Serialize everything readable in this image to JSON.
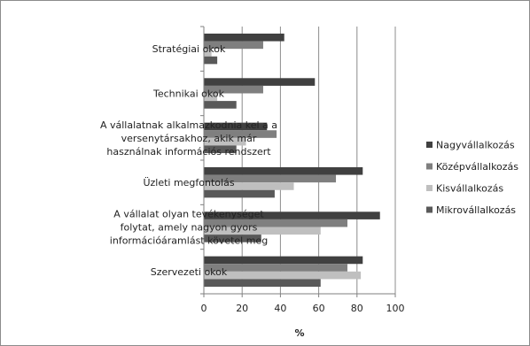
{
  "chart_data": {
    "type": "bar",
    "orientation": "horizontal",
    "categories": [
      [
        "Stratégiai okok"
      ],
      [
        "Technikai okok"
      ],
      [
        "A vállalatnak alkalmazkodnia kel a a",
        "versenytársakhoz, akik már",
        "használnak információs rendszert"
      ],
      [
        "Üzleti megfontolás"
      ],
      [
        "A vállalat olyan tevékenységet",
        "folytat, amely nagyon gyors",
        "információáramlást követel meg"
      ],
      [
        "Szervezeti okok"
      ]
    ],
    "series": [
      {
        "name": "Nagyvállalkozás",
        "color": "#404040",
        "values": [
          42,
          58,
          33,
          83,
          92,
          83
        ]
      },
      {
        "name": "Középvállalkozás",
        "color": "#7f7f7f",
        "values": [
          31,
          31,
          38,
          69,
          75,
          75
        ]
      },
      {
        "name": "Kisvállalkozás",
        "color": "#bfbfbf",
        "values": [
          4,
          7,
          22,
          47,
          61,
          82
        ]
      },
      {
        "name": "Mikrovállalkozás",
        "color": "#595959",
        "values": [
          7,
          17,
          17,
          37,
          30,
          61
        ]
      }
    ],
    "xlim": [
      0,
      100
    ],
    "xticks": [
      "0",
      "20",
      "40",
      "60",
      "80",
      "100"
    ],
    "xlabel": "%",
    "grid": "vertical major gridlines",
    "legend_position": "right"
  }
}
